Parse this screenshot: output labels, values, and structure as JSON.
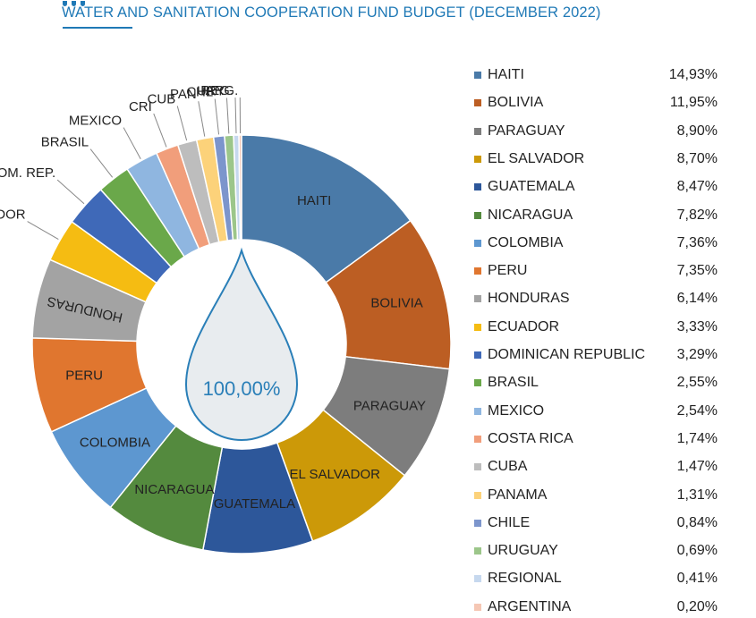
{
  "header": {
    "title": "WATER AND SANITATION COOPERATION FUND BUDGET (DECEMBER 2022)"
  },
  "colors": {
    "accent": "#1f79b6",
    "drop_fill": "#e8ecef",
    "drop_stroke": "#2a7fb8"
  },
  "chart_data": {
    "type": "pie",
    "title": "WATER AND SANITATION COOPERATION FUND BUDGET (DECEMBER 2022)",
    "center_label": "100,00%",
    "slices": [
      {
        "name": "HAITI",
        "label": "HAITI",
        "value": 14.93,
        "value_text": "14,93%",
        "color": "#4a7aa8"
      },
      {
        "name": "BOLIVIA",
        "label": "BOLIVIA",
        "value": 11.95,
        "value_text": "11,95%",
        "color": "#bc5e23"
      },
      {
        "name": "PARAGUAY",
        "label": "PARAGUAY",
        "value": 8.9,
        "value_text": "8,90%",
        "color": "#7d7d7d"
      },
      {
        "name": "EL SALVADOR",
        "label": "EL SALVADOR",
        "value": 8.7,
        "value_text": "8,70%",
        "color": "#cc9908"
      },
      {
        "name": "GUATEMALA",
        "label": "GUATEMALA",
        "value": 8.47,
        "value_text": "8,47%",
        "color": "#2d579a"
      },
      {
        "name": "NICARAGUA",
        "label": "NICARAGUA",
        "value": 7.82,
        "value_text": "7,82%",
        "color": "#548a3e"
      },
      {
        "name": "COLOMBIA",
        "label": "COLOMBIA",
        "value": 7.36,
        "value_text": "7,36%",
        "color": "#5d97d0"
      },
      {
        "name": "PERU",
        "label": "PERU",
        "value": 7.35,
        "value_text": "7,35%",
        "color": "#e0762f"
      },
      {
        "name": "HONDURAS",
        "label": "HONDURAS",
        "value": 6.14,
        "value_text": "6,14%",
        "color": "#a3a3a3"
      },
      {
        "name": "ECUADOR",
        "label": "ECUADOR",
        "value": 3.33,
        "value_text": "3,33%",
        "color": "#f5bc12"
      },
      {
        "name": "DOMINICAN REPUBLIC",
        "label": "DOM. REP.",
        "value": 3.29,
        "value_text": "3,29%",
        "color": "#3f69b8"
      },
      {
        "name": "BRASIL",
        "label": "BRASIL",
        "value": 2.55,
        "value_text": "2,55%",
        "color": "#6aa84a"
      },
      {
        "name": "MEXICO",
        "label": "MEXICO",
        "value": 2.54,
        "value_text": "2,54%",
        "color": "#8fb6e0"
      },
      {
        "name": "COSTA RICA",
        "label": "CRI",
        "value": 1.74,
        "value_text": "1,74%",
        "color": "#f19e7b"
      },
      {
        "name": "CUBA",
        "label": "CUB",
        "value": 1.47,
        "value_text": "1,47%",
        "color": "#bdbdbd"
      },
      {
        "name": "PANAMA",
        "label": "PAN",
        "value": 1.31,
        "value_text": "1,31%",
        "color": "#fcd27a"
      },
      {
        "name": "CHILE",
        "label": "CHL",
        "value": 0.84,
        "value_text": "0,84%",
        "color": "#7c95cc"
      },
      {
        "name": "URUGUAY",
        "label": "URY",
        "value": 0.69,
        "value_text": "0,69%",
        "color": "#9cc68a"
      },
      {
        "name": "REGIONAL",
        "label": "REG.",
        "value": 0.41,
        "value_text": "0,41%",
        "color": "#c6d8ee"
      },
      {
        "name": "ARGENTINA",
        "label": "ARG.",
        "value": 0.2,
        "value_text": "0,20%",
        "color": "#f5c7b4"
      }
    ],
    "legend_position": "right"
  }
}
